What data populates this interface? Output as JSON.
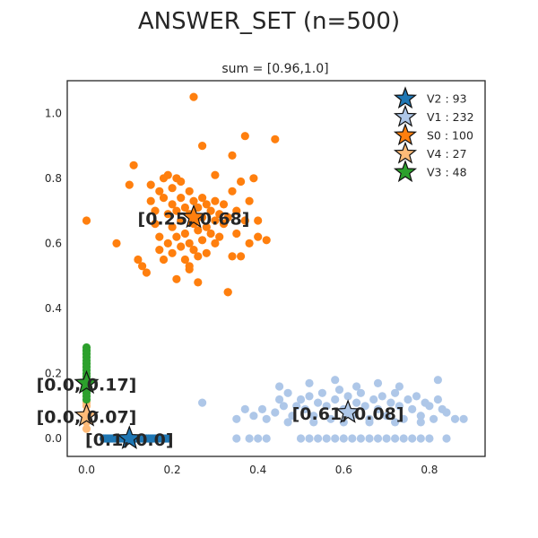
{
  "chart_data": {
    "type": "scatter",
    "title": "ANSWER_SET (n=500)",
    "subtitle": "sum = [0.96,1.0]",
    "xlim": [
      -0.045,
      0.93
    ],
    "ylim": [
      -0.055,
      1.1
    ],
    "x_ticks": [
      0.0,
      0.2,
      0.4,
      0.6,
      0.8
    ],
    "y_ticks": [
      0.0,
      0.2,
      0.4,
      0.6,
      0.8,
      1.0
    ],
    "x_tick_labels": [
      "0.0",
      "0.2",
      "0.4",
      "0.6",
      "0.8"
    ],
    "y_tick_labels": [
      "0.0",
      "0.2",
      "0.4",
      "0.6",
      "0.8",
      "1.0"
    ],
    "grid": false,
    "legend_position": "top-right",
    "series": [
      {
        "name": "V2 : 93",
        "color": "#1f77b4",
        "centroid": [
          0.1,
          0.0
        ],
        "centroid_label": "[0.1, 0.0]",
        "points": [
          [
            0.04,
            0.0
          ],
          [
            0.045,
            0.0
          ],
          [
            0.05,
            0.0
          ],
          [
            0.055,
            0.0
          ],
          [
            0.06,
            0.0
          ],
          [
            0.065,
            0.0
          ],
          [
            0.07,
            0.0
          ],
          [
            0.075,
            0.0
          ],
          [
            0.08,
            0.0
          ],
          [
            0.085,
            0.0
          ],
          [
            0.09,
            0.0
          ],
          [
            0.095,
            0.0
          ],
          [
            0.1,
            0.0
          ],
          [
            0.105,
            0.0
          ],
          [
            0.11,
            0.0
          ],
          [
            0.115,
            0.0
          ],
          [
            0.12,
            0.0
          ],
          [
            0.125,
            0.0
          ],
          [
            0.13,
            0.0
          ],
          [
            0.135,
            0.0
          ],
          [
            0.14,
            0.0
          ],
          [
            0.145,
            0.0
          ],
          [
            0.15,
            0.0
          ],
          [
            0.155,
            0.0
          ],
          [
            0.16,
            0.0
          ],
          [
            0.165,
            0.0
          ],
          [
            0.17,
            0.0
          ],
          [
            0.175,
            0.0
          ],
          [
            0.18,
            0.0
          ],
          [
            0.185,
            0.0
          ],
          [
            0.19,
            0.0
          ]
        ]
      },
      {
        "name": "V1 : 232",
        "color": "#aec7e8",
        "centroid": [
          0.61,
          0.08
        ],
        "centroid_label": "[0.61, 0.08]",
        "points": [
          [
            0.27,
            0.11
          ],
          [
            0.35,
            0.06
          ],
          [
            0.37,
            0.09
          ],
          [
            0.39,
            0.07
          ],
          [
            0.41,
            0.09
          ],
          [
            0.42,
            0.06
          ],
          [
            0.44,
            0.08
          ],
          [
            0.45,
            0.12
          ],
          [
            0.46,
            0.1
          ],
          [
            0.47,
            0.14
          ],
          [
            0.48,
            0.07
          ],
          [
            0.49,
            0.1
          ],
          [
            0.5,
            0.12
          ],
          [
            0.51,
            0.09
          ],
          [
            0.52,
            0.13
          ],
          [
            0.53,
            0.07
          ],
          [
            0.54,
            0.11
          ],
          [
            0.55,
            0.14
          ],
          [
            0.56,
            0.1
          ],
          [
            0.57,
            0.06
          ],
          [
            0.58,
            0.12
          ],
          [
            0.59,
            0.15
          ],
          [
            0.6,
            0.09
          ],
          [
            0.61,
            0.13
          ],
          [
            0.62,
            0.07
          ],
          [
            0.63,
            0.11
          ],
          [
            0.64,
            0.14
          ],
          [
            0.65,
            0.1
          ],
          [
            0.66,
            0.06
          ],
          [
            0.67,
            0.12
          ],
          [
            0.68,
            0.09
          ],
          [
            0.69,
            0.13
          ],
          [
            0.7,
            0.07
          ],
          [
            0.71,
            0.11
          ],
          [
            0.72,
            0.14
          ],
          [
            0.73,
            0.1
          ],
          [
            0.74,
            0.06
          ],
          [
            0.75,
            0.12
          ],
          [
            0.76,
            0.09
          ],
          [
            0.77,
            0.13
          ],
          [
            0.78,
            0.07
          ],
          [
            0.79,
            0.11
          ],
          [
            0.8,
            0.1
          ],
          [
            0.81,
            0.06
          ],
          [
            0.82,
            0.12
          ],
          [
            0.83,
            0.09
          ],
          [
            0.84,
            0.08
          ],
          [
            0.86,
            0.06
          ],
          [
            0.88,
            0.06
          ],
          [
            0.45,
            0.16
          ],
          [
            0.52,
            0.17
          ],
          [
            0.58,
            0.18
          ],
          [
            0.63,
            0.16
          ],
          [
            0.68,
            0.17
          ],
          [
            0.73,
            0.16
          ],
          [
            0.82,
            0.18
          ],
          [
            0.47,
            0.05
          ],
          [
            0.53,
            0.05
          ],
          [
            0.6,
            0.05
          ],
          [
            0.66,
            0.05
          ],
          [
            0.72,
            0.05
          ],
          [
            0.78,
            0.05
          ],
          [
            0.35,
            0.0
          ],
          [
            0.38,
            0.0
          ],
          [
            0.4,
            0.0
          ],
          [
            0.42,
            0.0
          ],
          [
            0.5,
            0.0
          ],
          [
            0.52,
            0.0
          ],
          [
            0.54,
            0.0
          ],
          [
            0.56,
            0.0
          ],
          [
            0.58,
            0.0
          ],
          [
            0.6,
            0.0
          ],
          [
            0.62,
            0.0
          ],
          [
            0.64,
            0.0
          ],
          [
            0.66,
            0.0
          ],
          [
            0.68,
            0.0
          ],
          [
            0.7,
            0.0
          ],
          [
            0.72,
            0.0
          ],
          [
            0.74,
            0.0
          ],
          [
            0.76,
            0.0
          ],
          [
            0.78,
            0.0
          ],
          [
            0.8,
            0.0
          ],
          [
            0.84,
            0.0
          ]
        ]
      },
      {
        "name": "S0 : 100",
        "color": "#ff7f0e",
        "centroid": [
          0.25,
          0.68
        ],
        "centroid_label": "[0.25, 0.68]",
        "points": [
          [
            0.0,
            0.67
          ],
          [
            0.07,
            0.6
          ],
          [
            0.1,
            0.78
          ],
          [
            0.11,
            0.84
          ],
          [
            0.12,
            0.55
          ],
          [
            0.13,
            0.53
          ],
          [
            0.14,
            0.51
          ],
          [
            0.15,
            0.73
          ],
          [
            0.15,
            0.78
          ],
          [
            0.16,
            0.7
          ],
          [
            0.16,
            0.66
          ],
          [
            0.17,
            0.76
          ],
          [
            0.17,
            0.62
          ],
          [
            0.17,
            0.58
          ],
          [
            0.18,
            0.8
          ],
          [
            0.18,
            0.74
          ],
          [
            0.18,
            0.55
          ],
          [
            0.19,
            0.81
          ],
          [
            0.19,
            0.69
          ],
          [
            0.19,
            0.6
          ],
          [
            0.2,
            0.77
          ],
          [
            0.2,
            0.72
          ],
          [
            0.2,
            0.65
          ],
          [
            0.2,
            0.57
          ],
          [
            0.21,
            0.8
          ],
          [
            0.21,
            0.7
          ],
          [
            0.21,
            0.62
          ],
          [
            0.22,
            0.79
          ],
          [
            0.22,
            0.74
          ],
          [
            0.22,
            0.67
          ],
          [
            0.22,
            0.59
          ],
          [
            0.23,
            0.71
          ],
          [
            0.23,
            0.63
          ],
          [
            0.23,
            0.55
          ],
          [
            0.24,
            0.76
          ],
          [
            0.24,
            0.69
          ],
          [
            0.24,
            0.6
          ],
          [
            0.24,
            0.52
          ],
          [
            0.25,
            0.73
          ],
          [
            0.25,
            0.66
          ],
          [
            0.25,
            0.58
          ],
          [
            0.25,
            1.05
          ],
          [
            0.26,
            0.71
          ],
          [
            0.26,
            0.64
          ],
          [
            0.26,
            0.56
          ],
          [
            0.27,
            0.74
          ],
          [
            0.27,
            0.68
          ],
          [
            0.27,
            0.61
          ],
          [
            0.27,
            0.9
          ],
          [
            0.28,
            0.72
          ],
          [
            0.28,
            0.65
          ],
          [
            0.28,
            0.57
          ],
          [
            0.29,
            0.7
          ],
          [
            0.29,
            0.63
          ],
          [
            0.3,
            0.73
          ],
          [
            0.3,
            0.67
          ],
          [
            0.3,
            0.6
          ],
          [
            0.31,
            0.69
          ],
          [
            0.31,
            0.62
          ],
          [
            0.32,
            0.72
          ],
          [
            0.32,
            0.66
          ],
          [
            0.33,
            0.45
          ],
          [
            0.33,
            0.68
          ],
          [
            0.34,
            0.56
          ],
          [
            0.34,
            0.87
          ],
          [
            0.35,
            0.7
          ],
          [
            0.35,
            0.63
          ],
          [
            0.36,
            0.56
          ],
          [
            0.36,
            0.79
          ],
          [
            0.37,
            0.67
          ],
          [
            0.37,
            0.93
          ],
          [
            0.38,
            0.73
          ],
          [
            0.38,
            0.6
          ],
          [
            0.39,
            0.8
          ],
          [
            0.4,
            0.67
          ],
          [
            0.4,
            0.62
          ],
          [
            0.42,
            0.61
          ],
          [
            0.44,
            0.92
          ],
          [
            0.21,
            0.49
          ],
          [
            0.24,
            0.53
          ],
          [
            0.26,
            0.48
          ],
          [
            0.3,
            0.81
          ],
          [
            0.34,
            0.76
          ],
          [
            0.33,
            0.45
          ]
        ]
      },
      {
        "name": "V4 : 27",
        "color": "#ffbb78",
        "centroid": [
          0.0,
          0.07
        ],
        "centroid_label": "[0.0, 0.07]",
        "points": [
          [
            0.0,
            0.03
          ],
          [
            0.0,
            0.05
          ],
          [
            0.0,
            0.06
          ],
          [
            0.0,
            0.08
          ],
          [
            0.0,
            0.1
          ],
          [
            0.0,
            0.11
          ]
        ]
      },
      {
        "name": "V3 : 48",
        "color": "#2ca02c",
        "centroid": [
          0.0,
          0.17
        ],
        "centroid_label": "[0.0, 0.17]",
        "points": [
          [
            0.0,
            0.12
          ],
          [
            0.0,
            0.13
          ],
          [
            0.0,
            0.14
          ],
          [
            0.0,
            0.15
          ],
          [
            0.0,
            0.16
          ],
          [
            0.0,
            0.17
          ],
          [
            0.0,
            0.18
          ],
          [
            0.0,
            0.19
          ],
          [
            0.0,
            0.2
          ],
          [
            0.0,
            0.21
          ],
          [
            0.0,
            0.22
          ],
          [
            0.0,
            0.23
          ],
          [
            0.0,
            0.24
          ],
          [
            0.0,
            0.25
          ],
          [
            0.0,
            0.26
          ],
          [
            0.0,
            0.27
          ],
          [
            0.0,
            0.28
          ]
        ]
      }
    ]
  }
}
